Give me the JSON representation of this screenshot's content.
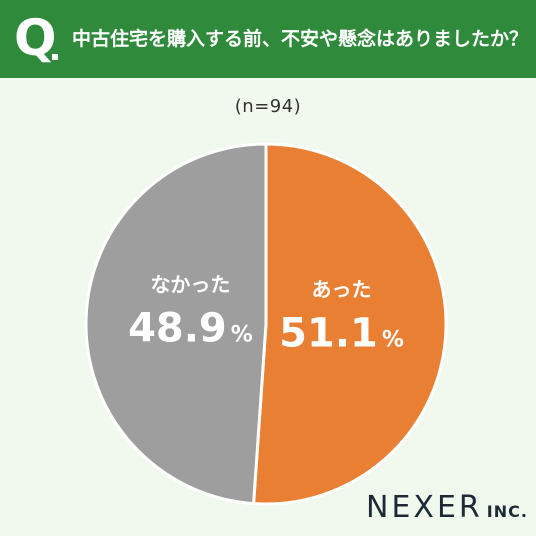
{
  "header": {
    "q_mark": "Q",
    "question": "中古住宅を購入する前、不安や懸念はありましたか？"
  },
  "sample_size": "(n=94)",
  "brand": {
    "name": "NEXER",
    "suffix": "INC."
  },
  "colors": {
    "header_bg": "#2f8a3c",
    "page_bg": "#f1f9ef",
    "slice_yes": "#e97f33",
    "slice_no": "#9e9e9e"
  },
  "chart_data": {
    "type": "pie",
    "slices": [
      {
        "label": "あった",
        "value": 51.1,
        "value_text": "51.1",
        "unit": "%",
        "color": "#e97f33"
      },
      {
        "label": "なかった",
        "value": 48.9,
        "value_text": "48.9",
        "unit": "%",
        "color": "#9e9e9e"
      }
    ],
    "start_angle_deg": 0,
    "direction": "clockwise"
  }
}
